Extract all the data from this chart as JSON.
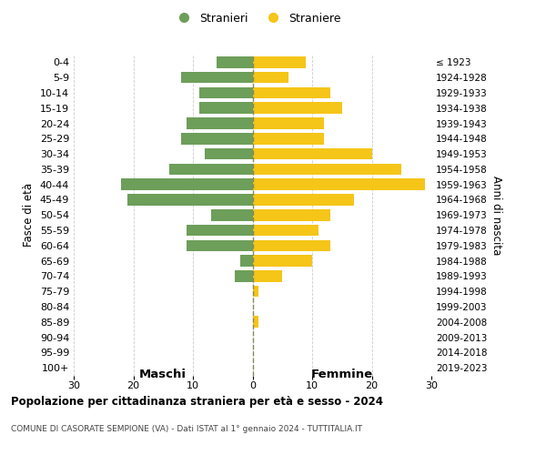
{
  "age_groups": [
    "100+",
    "95-99",
    "90-94",
    "85-89",
    "80-84",
    "75-79",
    "70-74",
    "65-69",
    "60-64",
    "55-59",
    "50-54",
    "45-49",
    "40-44",
    "35-39",
    "30-34",
    "25-29",
    "20-24",
    "15-19",
    "10-14",
    "5-9",
    "0-4"
  ],
  "birth_years": [
    "≤ 1923",
    "1924-1928",
    "1929-1933",
    "1934-1938",
    "1939-1943",
    "1944-1948",
    "1949-1953",
    "1954-1958",
    "1959-1963",
    "1964-1968",
    "1969-1973",
    "1974-1978",
    "1979-1983",
    "1984-1988",
    "1989-1993",
    "1994-1998",
    "1999-2003",
    "2004-2008",
    "2009-2013",
    "2014-2018",
    "2019-2023"
  ],
  "males": [
    0,
    0,
    0,
    0,
    0,
    0,
    3,
    2,
    11,
    11,
    7,
    21,
    22,
    14,
    8,
    12,
    11,
    9,
    9,
    12,
    6
  ],
  "females": [
    0,
    0,
    0,
    1,
    0,
    1,
    5,
    10,
    13,
    11,
    13,
    17,
    29,
    25,
    20,
    12,
    12,
    15,
    13,
    6,
    9
  ],
  "male_color": "#6d9e5a",
  "female_color": "#f5c518",
  "background_color": "#ffffff",
  "grid_color": "#cccccc",
  "title": "Popolazione per cittadinanza straniera per età e sesso - 2024",
  "subtitle": "COMUNE DI CASORATE SEMPIONE (VA) - Dati ISTAT al 1° gennaio 2024 - TUTTITALIA.IT",
  "left_header": "Maschi",
  "right_header": "Femmine",
  "ylabel_left": "Fasce di età",
  "ylabel_right": "Anni di nascita",
  "legend_male": "Stranieri",
  "legend_female": "Straniere",
  "xlim": 30,
  "bar_height": 0.75
}
